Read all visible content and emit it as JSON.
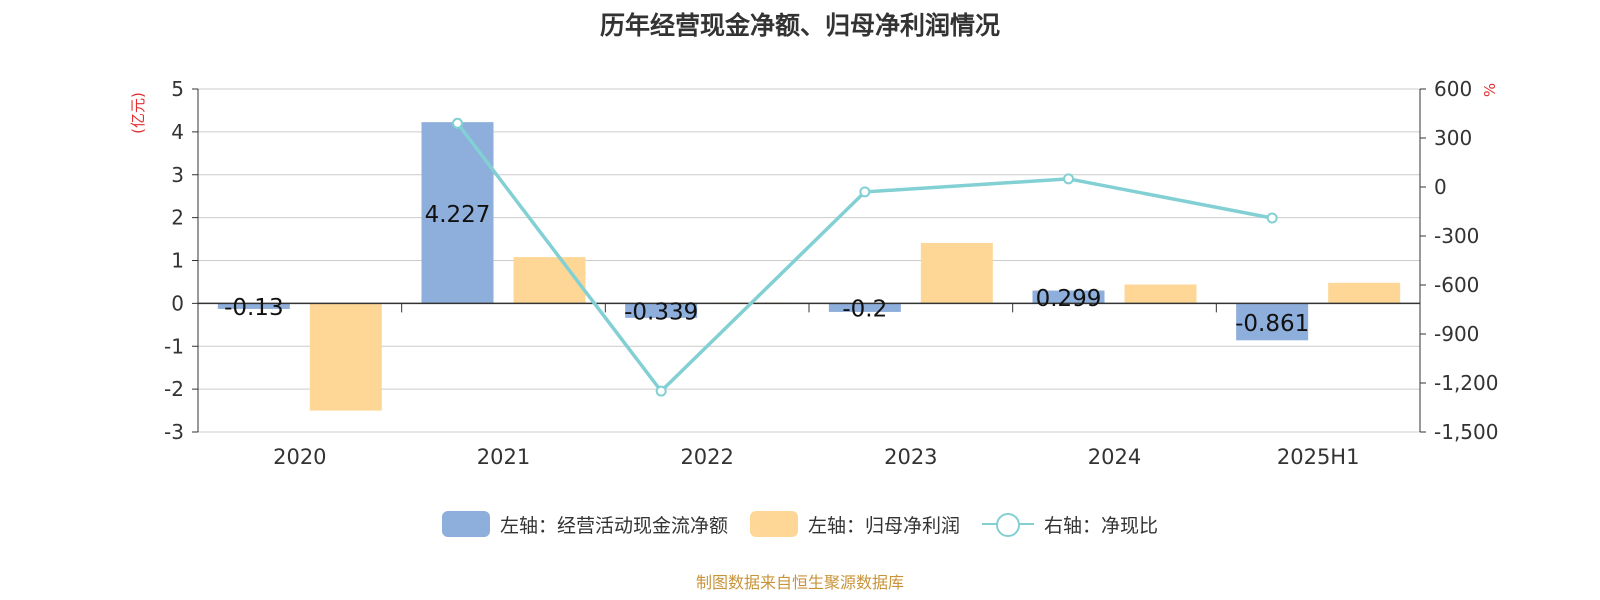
{
  "chart_data": {
    "type": "bar",
    "title": "历年经营现金净额、归母净利润情况",
    "categories": [
      "2020",
      "2021",
      "2022",
      "2023",
      "2024",
      "2025H1"
    ],
    "left_axis": {
      "unit": "(亿元)",
      "ticks": [
        "5",
        "4",
        "3",
        "2",
        "1",
        "0",
        "-1",
        "-2",
        "-3"
      ],
      "ylim": [
        -3,
        5
      ]
    },
    "right_axis": {
      "unit": "%",
      "ticks": [
        "600",
        "300",
        "0",
        "-300",
        "-600",
        "-900",
        "-1,200",
        "-1,500"
      ],
      "ylim": [
        -1500,
        600
      ]
    },
    "series": [
      {
        "name": "左轴：经营活动现金流净额",
        "type": "bar",
        "axis": "left",
        "color": "#8eaedb",
        "values": [
          -0.13,
          4.227,
          -0.339,
          -0.2,
          0.299,
          -0.861
        ],
        "labels": [
          "-0.13",
          "4.227",
          "-0.339",
          "-0.2",
          "0.299",
          "-0.861"
        ]
      },
      {
        "name": "左轴：归母净利润",
        "type": "bar",
        "axis": "left",
        "color": "#fed797",
        "values": [
          -2.5,
          1.08,
          0.02,
          1.41,
          0.44,
          0.48
        ]
      },
      {
        "name": "右轴：净现比",
        "type": "line",
        "axis": "right",
        "color": "#82d0d4",
        "values": [
          null,
          390,
          -1250,
          -30,
          50,
          -190
        ]
      }
    ],
    "grid": true,
    "legend_position": "bottom-center"
  },
  "footer": {
    "source": "制图数据来自恒生聚源数据库"
  }
}
